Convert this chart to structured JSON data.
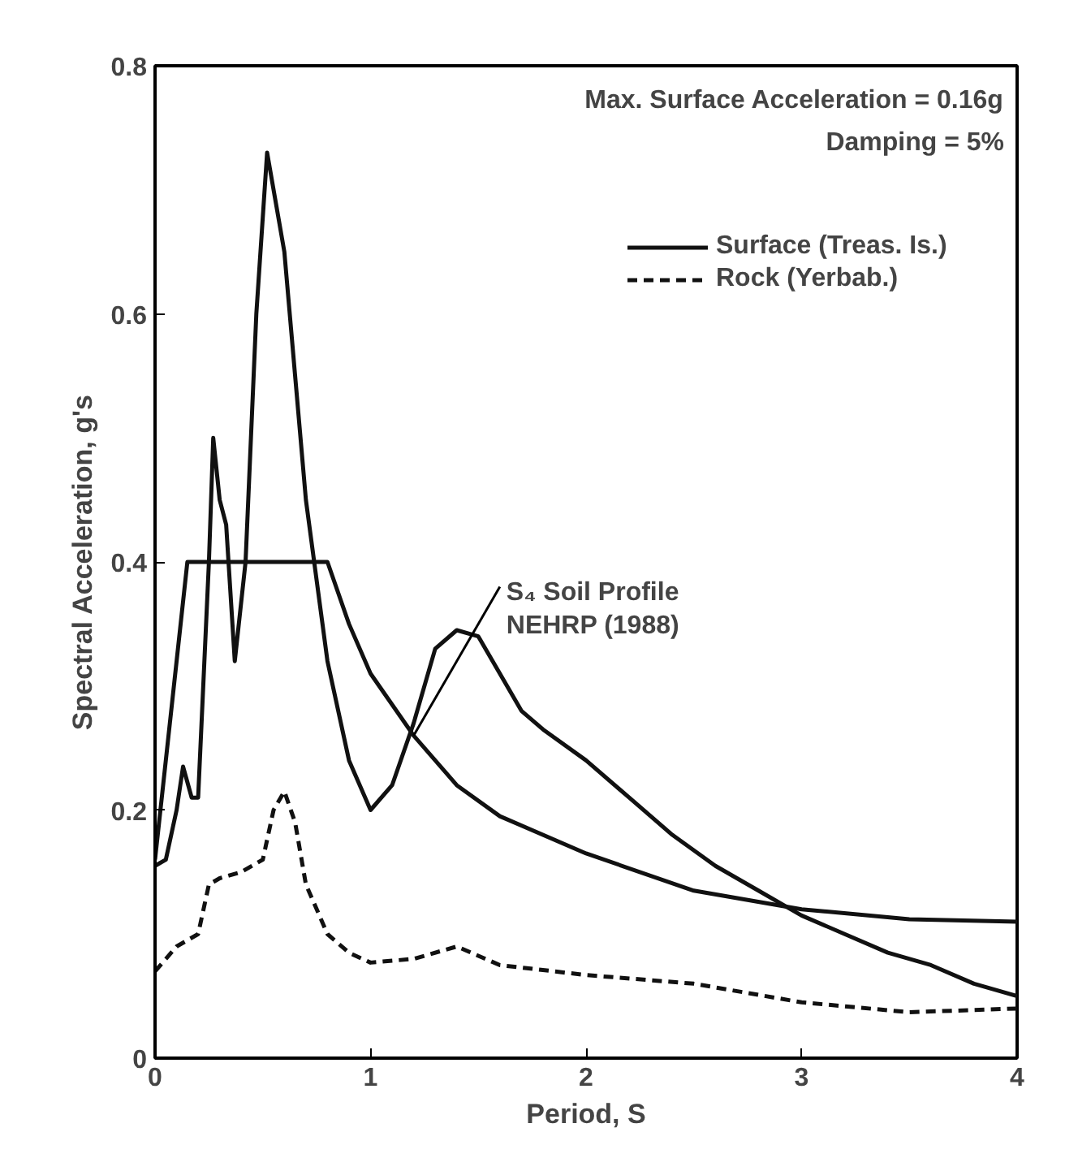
{
  "chart_data": {
    "type": "line",
    "xlabel": "Period, S",
    "ylabel": "Spectral Acceleration, g's",
    "x": [
      0,
      0.05,
      0.1,
      0.13,
      0.17,
      0.2,
      0.25,
      0.27,
      0.3,
      0.33,
      0.37,
      0.42,
      0.47,
      0.52,
      0.6,
      0.7,
      0.8,
      0.9,
      1.0,
      1.1,
      1.2,
      1.3,
      1.4,
      1.5,
      1.6,
      1.7,
      1.8,
      2.0,
      2.2,
      2.4,
      2.6,
      2.8,
      3.0,
      3.2,
      3.4,
      3.6,
      3.8,
      4.0
    ],
    "series": [
      {
        "name": "Surface (Treas. Is.)",
        "color": "#111111",
        "line_style": "solid",
        "values": [
          0.155,
          0.16,
          0.2,
          0.235,
          0.21,
          0.21,
          0.4,
          0.5,
          0.45,
          0.43,
          0.32,
          0.4,
          0.6,
          0.73,
          0.65,
          0.45,
          0.32,
          0.24,
          0.2,
          0.22,
          0.27,
          0.33,
          0.345,
          0.34,
          0.31,
          0.28,
          0.265,
          0.24,
          0.21,
          0.18,
          0.155,
          0.135,
          0.115,
          0.1,
          0.085,
          0.075,
          0.06,
          0.05
        ]
      },
      {
        "name": "Rock (Yerbab.)",
        "color": "#111111",
        "line_style": "dashed",
        "x": [
          0,
          0.05,
          0.1,
          0.2,
          0.25,
          0.3,
          0.4,
          0.5,
          0.55,
          0.6,
          0.65,
          0.7,
          0.8,
          0.9,
          1.0,
          1.2,
          1.4,
          1.6,
          2.0,
          2.5,
          3.0,
          3.5,
          4.0
        ],
        "values": [
          0.07,
          0.08,
          0.09,
          0.1,
          0.14,
          0.145,
          0.15,
          0.16,
          0.2,
          0.215,
          0.19,
          0.14,
          0.1,
          0.085,
          0.077,
          0.08,
          0.09,
          0.075,
          0.067,
          0.06,
          0.045,
          0.037,
          0.04
        ]
      },
      {
        "color": "#111111",
        "line_style": "solid",
        "x": [
          0,
          0.15,
          0.8,
          0.9,
          1.0,
          1.2,
          1.4,
          1.6,
          2.0,
          2.5,
          3.0,
          3.5,
          4.0
        ],
        "values": [
          0.16,
          0.4,
          0.4,
          0.35,
          0.31,
          0.26,
          0.22,
          0.195,
          0.165,
          0.135,
          0.12,
          0.112,
          0.11
        ]
      }
    ],
    "annotations": [
      "Max. Surface Acceleration = 0.16g",
      "Damping = 5%",
      {
        "text": "S₄ Soil  Profile\nNEHRP (1988)",
        "x": 1.2,
        "y": 0.26
      }
    ],
    "xlim": [
      0,
      4
    ],
    "ylim": [
      0,
      0.8
    ],
    "xticks": [
      0,
      1,
      2,
      3,
      4
    ],
    "yticks": [
      0,
      0.2,
      0.4,
      0.6,
      0.8
    ],
    "grid": false,
    "legend": "top right"
  }
}
